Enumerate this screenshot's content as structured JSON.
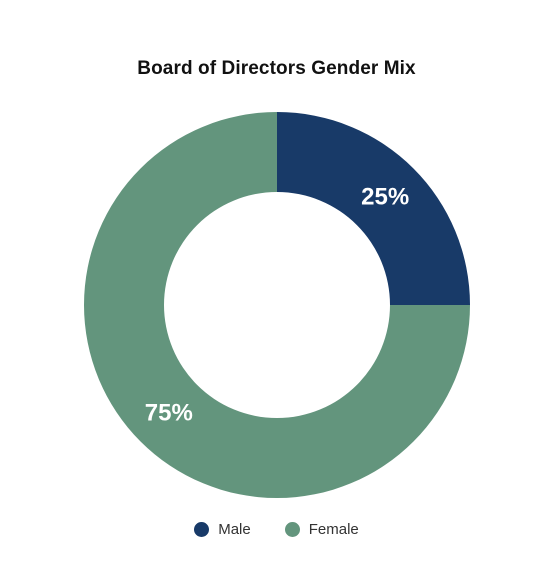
{
  "chart_data": {
    "type": "pie",
    "title": "Board of Directors Gender Mix",
    "categories": [
      "Male",
      "Female"
    ],
    "values": [
      25,
      75
    ],
    "labels": [
      "25%",
      "75%"
    ],
    "colors": [
      "#183a68",
      "#63957d"
    ],
    "donut": true,
    "legend_position": "bottom"
  }
}
